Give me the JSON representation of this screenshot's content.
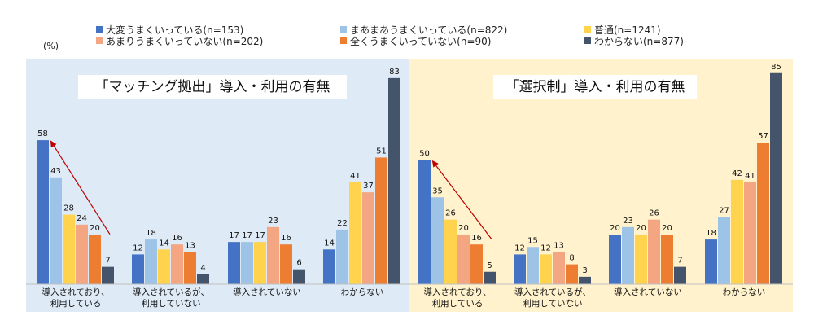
{
  "unit_label": "(%)",
  "legend": [
    {
      "label": "大変うまくいっている(n=153)",
      "color": "#4472C4"
    },
    {
      "label": "まあまあうまくいっている(n=822)",
      "color": "#9DC3E6"
    },
    {
      "label": "普通(n=1241)",
      "color": "#FFD34E"
    },
    {
      "label": "あまりうまくいっていない(n=202)",
      "color": "#F4A582"
    },
    {
      "label": "全くうまくいっていない(n=90)",
      "color": "#ED7D31"
    },
    {
      "label": "わからない(n=877)",
      "color": "#44546A"
    }
  ],
  "panels": [
    {
      "title": "「マッチング拠出」導入・利用の有無",
      "background": "#DEEBF7"
    },
    {
      "title": "「選択制」導入・利用の有無",
      "background": "#FFF2CC"
    }
  ],
  "chart_data": [
    {
      "type": "bar",
      "title": "「マッチング拠出」導入・利用の有無",
      "categories": [
        "導入されており、\n利用している",
        "導入されているが、\n利用していない",
        "導入されていない",
        "わからない"
      ],
      "series": [
        {
          "name": "大変うまくいっている(n=153)",
          "values": [
            58,
            12,
            17,
            14
          ]
        },
        {
          "name": "まあまあうまくいっている(n=822)",
          "values": [
            43,
            18,
            17,
            22
          ]
        },
        {
          "name": "普通(n=1241)",
          "values": [
            28,
            14,
            17,
            41
          ]
        },
        {
          "name": "あまりうまくいっていない(n=202)",
          "values": [
            24,
            16,
            23,
            37
          ]
        },
        {
          "name": "全くうまくいっていない(n=90)",
          "values": [
            20,
            13,
            16,
            51
          ]
        },
        {
          "name": "わからない(n=877)",
          "values": [
            7,
            4,
            6,
            83
          ]
        }
      ],
      "ylabel": "(%)",
      "ylim": [
        0,
        90
      ],
      "annotation": "arrow from 7 to 58 in the first category group"
    },
    {
      "type": "bar",
      "title": "「選択制」導入・利用の有無",
      "categories": [
        "導入されており、\n利用している",
        "導入されているが、\n利用していない",
        "導入されていない",
        "わからない"
      ],
      "series": [
        {
          "name": "大変うまくいっている(n=153)",
          "values": [
            50,
            12,
            20,
            18
          ]
        },
        {
          "name": "まあまあうまくいっている(n=822)",
          "values": [
            35,
            15,
            23,
            27
          ]
        },
        {
          "name": "普通(n=1241)",
          "values": [
            26,
            12,
            20,
            42
          ]
        },
        {
          "name": "あまりうまくいっていない(n=202)",
          "values": [
            20,
            13,
            26,
            41
          ]
        },
        {
          "name": "全くうまくいっていない(n=90)",
          "values": [
            16,
            8,
            20,
            57
          ]
        },
        {
          "name": "わからない(n=877)",
          "values": [
            5,
            3,
            7,
            85
          ]
        }
      ],
      "ylabel": "(%)",
      "ylim": [
        0,
        90
      ],
      "annotation": "arrow from 5 to 50 in the first category group"
    }
  ]
}
